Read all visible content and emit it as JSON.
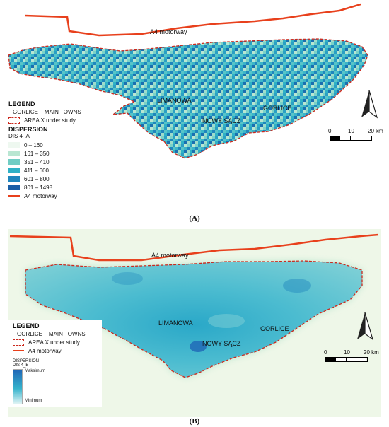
{
  "panel_a": {
    "motorway_label": "A4 motorway",
    "towns": {
      "limanowa": "LIMANOWA",
      "nowy_sacz": "NOWY SĄCZ",
      "gorlice": "GORLICE"
    },
    "legend": {
      "title": "LEGEND",
      "main_towns": "GORLICE _ MAIN TOWNS",
      "area": "AREA  X under study",
      "dispersion_title": "DISPERSION",
      "layer": "DIS 4_A",
      "classes": [
        {
          "label": "0 – 160",
          "color": "#eef8f0"
        },
        {
          "label": "161 – 350",
          "color": "#b9e6d2"
        },
        {
          "label": "351 – 410",
          "color": "#70cdc4"
        },
        {
          "label": "411 – 600",
          "color": "#2fb1c6"
        },
        {
          "label": "601 – 800",
          "color": "#1f86bd"
        },
        {
          "label": "801 – 1498",
          "color": "#1a5ea6"
        }
      ],
      "motorway": "A4 motorway"
    },
    "scale": {
      "ticks": [
        "0",
        "10",
        "20 km"
      ]
    },
    "caption": "(A)"
  },
  "panel_b": {
    "motorway_label": "A4 motorway",
    "towns": {
      "limanowa": "LIMANOWA",
      "nowy_sacz": "NOWY SĄCZ",
      "gorlice": "GORLICE"
    },
    "legend": {
      "title": "LEGEND",
      "main_towns": "GORLICE _ MAIN TOWNS",
      "area": "AREA  X under study",
      "motorway": "A4 motorway",
      "dispersion_title": "DISPERSION",
      "layer": "DIS 4_B",
      "max_label": "Maksimum",
      "min_label": "Minimum"
    },
    "scale": {
      "ticks": [
        "0",
        "10",
        "20 km"
      ]
    },
    "caption": "(B)"
  },
  "colors": {
    "motorway": "#e8401c",
    "boundary": "#cc2a1f",
    "background_b": "#eef7e8"
  },
  "icons": [
    "north-arrow-icon"
  ]
}
